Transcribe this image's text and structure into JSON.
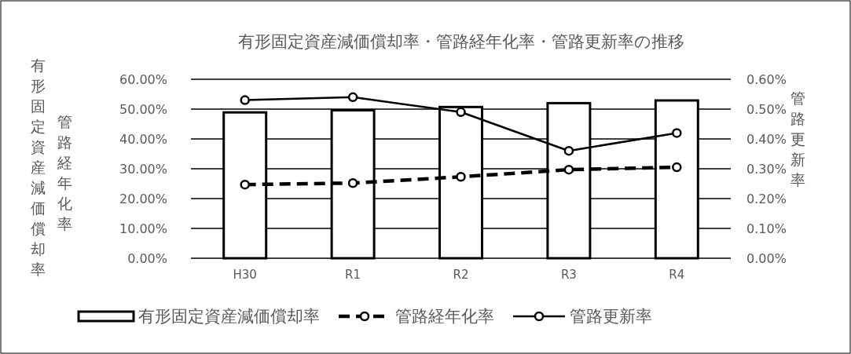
{
  "chart_data": {
    "type": "bar",
    "title": "有形固定資産減価償却率・管路経年化率・管路更新率の推移",
    "ylabel": "有形固定資産減価償却率",
    "y2label": "管路更新率",
    "annotations": [
      "管路経年化率"
    ],
    "categories": [
      "H30",
      "R1",
      "R2",
      "R3",
      "R4"
    ],
    "series": [
      {
        "name": "有形固定資産減価償却率",
        "color": "#000000",
        "values": [
          48.9,
          49.6,
          50.7,
          52.0,
          52.9
        ]
      },
      {
        "name": "管路経年化率",
        "type": "line",
        "color": "#000000",
        "line_style": "dashed",
        "marker": "circle",
        "values": [
          24.7,
          25.2,
          27.3,
          29.7,
          30.5
        ]
      },
      {
        "name": "管路更新率",
        "type": "line",
        "axis": "y2",
        "color": "#000000",
        "line_style": "solid",
        "marker": "circle",
        "values": [
          0.53,
          0.54,
          0.49,
          0.36,
          0.42
        ]
      }
    ],
    "ylim": [
      0,
      60
    ],
    "yticks": [
      {
        "value": 0,
        "label": "0.00%"
      },
      {
        "value": 10,
        "label": "10.00%"
      },
      {
        "value": 20,
        "label": "20.00%"
      },
      {
        "value": 30,
        "label": "30.00%"
      },
      {
        "value": 40,
        "label": "40.00%"
      },
      {
        "value": 50,
        "label": "50.00%"
      },
      {
        "value": 60,
        "label": "60.00%"
      }
    ],
    "y2lim": [
      0,
      0.6
    ],
    "y2ticks": [
      {
        "value": 0,
        "label": "0.00%"
      },
      {
        "value": 0.1,
        "label": "0.10%"
      },
      {
        "value": 0.2,
        "label": "0.20%"
      },
      {
        "value": 0.3,
        "label": "0.30%"
      },
      {
        "value": 0.4,
        "label": "0.40%"
      },
      {
        "value": 0.5,
        "label": "0.50%"
      },
      {
        "value": 0.6,
        "label": "0.60%"
      }
    ],
    "grid": "y",
    "legend": "bottom"
  }
}
